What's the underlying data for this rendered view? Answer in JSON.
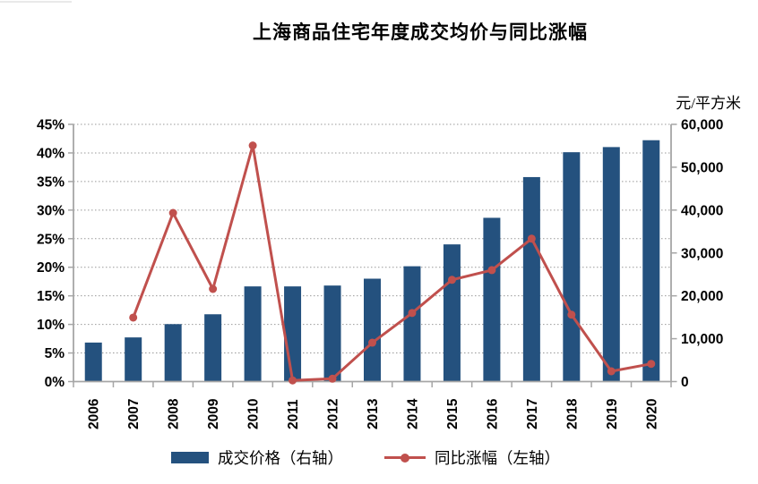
{
  "title": "上海商品住宅年度成交均价与同比涨幅",
  "right_axis_unit_label": "元/平方米",
  "legend": {
    "position": "bottom",
    "items": [
      {
        "label": "成交价格（右轴）",
        "marker": "bar-swatch",
        "color": "#24517E"
      },
      {
        "label": "同比涨幅（左轴）",
        "marker": "line-dot-swatch",
        "color": "#C0504D"
      }
    ]
  },
  "chart_data": {
    "type": "combo-bar-line",
    "title": "上海商品住宅年度成交均价与同比涨幅",
    "categories": [
      "2006",
      "2007",
      "2008",
      "2009",
      "2010",
      "2011",
      "2012",
      "2013",
      "2014",
      "2015",
      "2016",
      "2017",
      "2018",
      "2019",
      "2020"
    ],
    "series": [
      {
        "name": "成交价格（右轴）",
        "type": "bar",
        "axis": "right",
        "unit": "元/平方米",
        "color": "#24517E",
        "values": [
          9100,
          10300,
          13400,
          15700,
          22200,
          22200,
          22400,
          24000,
          26900,
          32000,
          38200,
          47700,
          53500,
          54700,
          56300
        ]
      },
      {
        "name": "同比涨幅（左轴）",
        "type": "line",
        "axis": "left",
        "unit": "%",
        "color": "#C0504D",
        "values": [
          null,
          11.2,
          29.5,
          16.2,
          41.3,
          0.2,
          0.5,
          6.8,
          12.0,
          17.8,
          19.5,
          25.0,
          11.7,
          1.8,
          3.1
        ]
      }
    ],
    "left_axis": {
      "min": 0,
      "max": 45,
      "step": 5,
      "unit": "%",
      "tick_labels": [
        "0%",
        "5%",
        "10%",
        "15%",
        "20%",
        "25%",
        "30%",
        "35%",
        "40%",
        "45%"
      ]
    },
    "right_axis": {
      "min": 0,
      "max": 60000,
      "step": 10000,
      "unit": "元/平方米",
      "tick_labels": [
        "0",
        "10,000",
        "20,000",
        "30,000",
        "40,000",
        "50,000",
        "60,000"
      ]
    },
    "grid": "horizontal dotted",
    "axis_color": "#A6A6A6",
    "gridline_color": "#999999",
    "legend_position": "bottom"
  }
}
